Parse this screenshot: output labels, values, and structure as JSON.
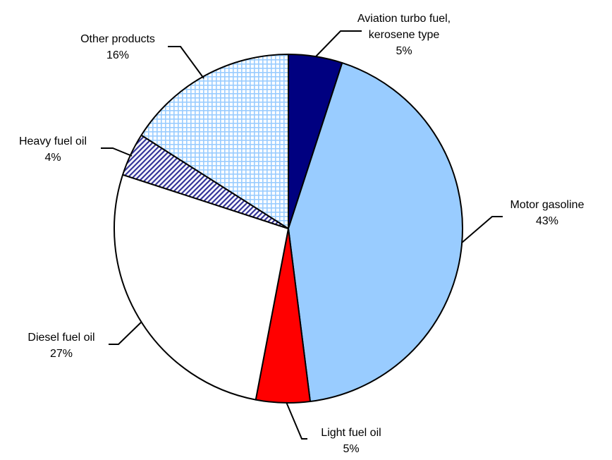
{
  "chart_data": {
    "type": "pie",
    "title": "",
    "start": "12 o'clock",
    "direction": "clockwise",
    "slices": [
      {
        "label": [
          "Aviation turbo fuel,",
          "kerosene type"
        ],
        "value": 5,
        "value_label": "5%",
        "color": "#000080",
        "pattern": "solid"
      },
      {
        "label": [
          "Motor gasoline"
        ],
        "value": 43,
        "value_label": "43%",
        "color": "#99ccff",
        "pattern": "solid"
      },
      {
        "label": [
          "Light fuel oil"
        ],
        "value": 5,
        "value_label": "5%",
        "color": "#ff0000",
        "pattern": "solid"
      },
      {
        "label": [
          "Diesel fuel oil"
        ],
        "value": 27,
        "value_label": "27%",
        "color": "#ffffff",
        "pattern": "solid"
      },
      {
        "label": [
          "Heavy fuel oil"
        ],
        "value": 4,
        "value_label": "4%",
        "color": "#333399",
        "pattern": "diagonal-hatch"
      },
      {
        "label": [
          "Other products"
        ],
        "value": 16,
        "value_label": "16%",
        "color": "#99ccff",
        "pattern": "grid"
      }
    ]
  }
}
